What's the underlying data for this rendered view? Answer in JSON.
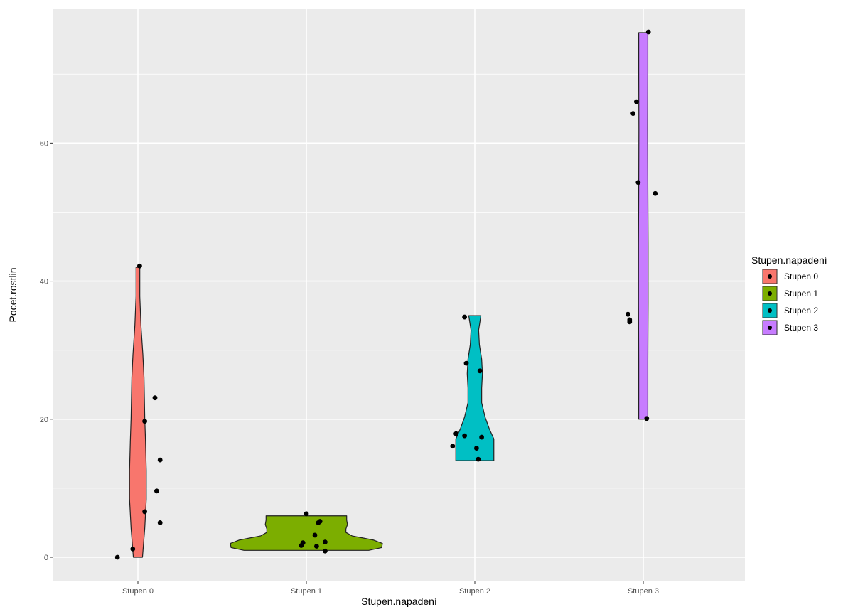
{
  "chart_data": {
    "type": "violin",
    "xlabel": "Stupen.napadení",
    "ylabel": "Pocet.rostlin",
    "categories": [
      "Stupen 0",
      "Stupen 1",
      "Stupen 2",
      "Stupen 3"
    ],
    "y_ticks": [
      0,
      20,
      40,
      60
    ],
    "ylim": [
      -3.5,
      79.5
    ],
    "grid": true,
    "legend": {
      "title": "Stupen.napadení",
      "position": "right",
      "items": [
        {
          "label": "Stupen 0",
          "color": "#F8766D"
        },
        {
          "label": "Stupen 1",
          "color": "#7CAE00"
        },
        {
          "label": "Stupen 2",
          "color": "#00BFC4"
        },
        {
          "label": "Stupen 3",
          "color": "#C77CFF"
        }
      ]
    },
    "series": [
      {
        "category": "Stupen 0",
        "color": "#F8766D",
        "range": [
          0,
          42
        ],
        "points": [
          {
            "x": -0.12,
            "y": 0
          },
          {
            "x": -0.03,
            "y": 1.2
          },
          {
            "x": 0.01,
            "y": 42.2
          },
          {
            "x": 0.04,
            "y": 6.6
          },
          {
            "x": 0.04,
            "y": 19.7
          },
          {
            "x": 0.1,
            "y": 23.1
          },
          {
            "x": 0.11,
            "y": 9.6
          },
          {
            "x": 0.13,
            "y": 14.1
          },
          {
            "x": 0.13,
            "y": 5.0
          }
        ]
      },
      {
        "category": "Stupen 1",
        "color": "#7CAE00",
        "range": [
          1,
          6
        ],
        "points": [
          {
            "x": -0.03,
            "y": 1.7
          },
          {
            "x": -0.02,
            "y": 2.1
          },
          {
            "x": 0.0,
            "y": 6.3
          },
          {
            "x": 0.05,
            "y": 3.2
          },
          {
            "x": 0.06,
            "y": 1.6
          },
          {
            "x": 0.07,
            "y": 5.0
          },
          {
            "x": 0.08,
            "y": 5.2
          },
          {
            "x": 0.11,
            "y": 2.2
          },
          {
            "x": 0.11,
            "y": 0.9
          }
        ]
      },
      {
        "category": "Stupen 2",
        "color": "#00BFC4",
        "range": [
          14,
          35
        ],
        "points": [
          {
            "x": -0.13,
            "y": 16.1
          },
          {
            "x": -0.11,
            "y": 17.9
          },
          {
            "x": -0.06,
            "y": 34.8
          },
          {
            "x": -0.06,
            "y": 17.6
          },
          {
            "x": -0.05,
            "y": 28.1
          },
          {
            "x": 0.01,
            "y": 15.8
          },
          {
            "x": 0.02,
            "y": 14.2
          },
          {
            "x": 0.03,
            "y": 27.0
          },
          {
            "x": 0.04,
            "y": 17.4
          }
        ]
      },
      {
        "category": "Stupen 3",
        "color": "#C77CFF",
        "range": [
          20,
          76
        ],
        "points": [
          {
            "x": -0.09,
            "y": 35.2
          },
          {
            "x": -0.08,
            "y": 34.4
          },
          {
            "x": -0.08,
            "y": 34.1
          },
          {
            "x": -0.06,
            "y": 64.3
          },
          {
            "x": -0.04,
            "y": 66.0
          },
          {
            "x": -0.03,
            "y": 54.3
          },
          {
            "x": 0.02,
            "y": 20.1
          },
          {
            "x": 0.03,
            "y": 76.1
          },
          {
            "x": 0.07,
            "y": 52.7
          }
        ]
      }
    ]
  }
}
